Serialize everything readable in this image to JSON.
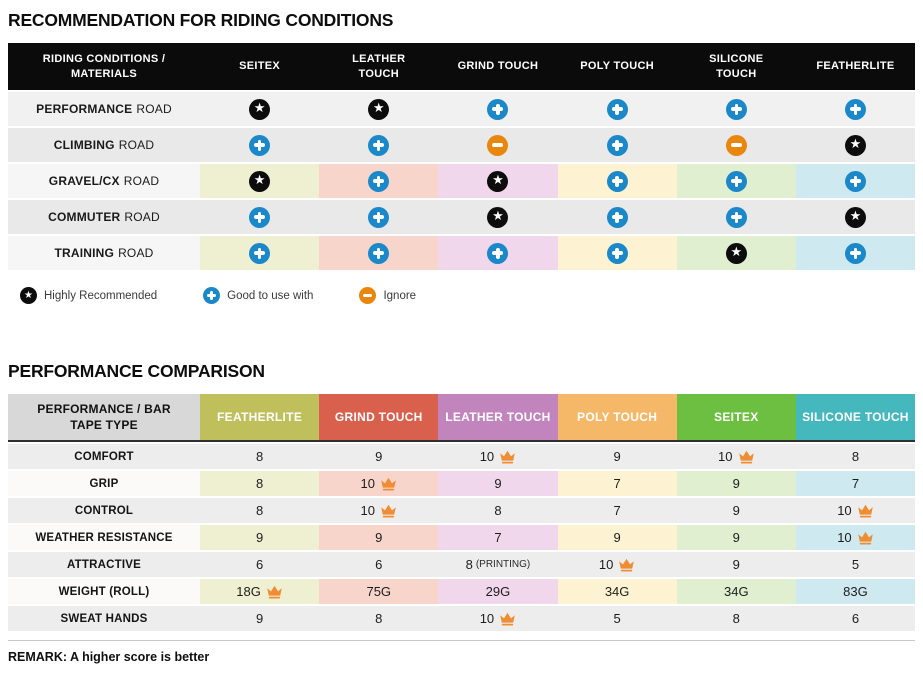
{
  "colors": {
    "header_black": "#0b0b0b",
    "icon_star_bg": "#0c0c0c",
    "icon_plus_bg": "#1a88c9",
    "icon_minus_bg": "#e8860e",
    "crown_orange": "#ee8d33",
    "row_light_gray": "#f1f1f1",
    "row_dark_gray": "#e9e9e9",
    "t1_colored_row_label_bg": "#f6f6f6",
    "t2_row_gray": "#ededed",
    "t2_colored_row_label_bg": "#fbfaf8",
    "t2_header_label_bg": "#d8d8d8",
    "column_cell_colors": [
      "#efefd2",
      "#f8d5ca",
      "#f1d7ec",
      "#fdf3d3",
      "#dfefd0",
      "#cfe9f0"
    ],
    "column_header_colors": [
      "#bfc05c",
      "#d9604d",
      "#c284bd",
      "#f5b868",
      "#6cbf40",
      "#45b8be"
    ]
  },
  "section1": {
    "title": "RECOMMENDATION FOR RIDING CONDITIONS",
    "table": {
      "header_label": "RIDING CONDITIONS / MATERIALS",
      "columns": [
        "SEITEX",
        "LEATHER TOUCH",
        "GRIND TOUCH",
        "POLY TOUCH",
        "SILICONE TOUCH",
        "FEATHERLITE"
      ],
      "rows": [
        {
          "label_bold": "PERFORMANCE",
          "label_rest": "ROAD",
          "colored": false,
          "cells": [
            "star",
            "star",
            "plus",
            "plus",
            "plus",
            "plus"
          ]
        },
        {
          "label_bold": "CLIMBING",
          "label_rest": "ROAD",
          "colored": false,
          "cells": [
            "plus",
            "plus",
            "minus",
            "plus",
            "minus",
            "star"
          ]
        },
        {
          "label_bold": "GRAVEL/CX",
          "label_rest": "ROAD",
          "colored": true,
          "cells": [
            "star",
            "plus",
            "star",
            "plus",
            "plus",
            "plus"
          ]
        },
        {
          "label_bold": "COMMUTER",
          "label_rest": "ROAD",
          "colored": false,
          "cells": [
            "plus",
            "plus",
            "star",
            "plus",
            "plus",
            "star"
          ]
        },
        {
          "label_bold": "TRAINING",
          "label_rest": "ROAD",
          "colored": true,
          "cells": [
            "plus",
            "plus",
            "plus",
            "plus",
            "star",
            "plus"
          ]
        }
      ]
    },
    "legend": [
      {
        "icon": "star",
        "label": "Highly Recommended"
      },
      {
        "icon": "plus",
        "label": "Good to use with"
      },
      {
        "icon": "minus",
        "label": "Ignore"
      }
    ]
  },
  "section2": {
    "title": "PERFORMANCE COMPARISON",
    "table": {
      "header_label": "PERFORMANCE / BAR TAPE TYPE",
      "columns": [
        "FEATHERLITE",
        "GRIND TOUCH",
        "LEATHER TOUCH",
        "POLY TOUCH",
        "SEITEX",
        "SILICONE TOUCH"
      ],
      "rows": [
        {
          "label": "COMFORT",
          "colored": false,
          "cells": [
            {
              "v": "8"
            },
            {
              "v": "9"
            },
            {
              "v": "10",
              "crown": true
            },
            {
              "v": "9"
            },
            {
              "v": "10",
              "crown": true
            },
            {
              "v": "8"
            }
          ]
        },
        {
          "label": "GRIP",
          "colored": true,
          "cells": [
            {
              "v": "8"
            },
            {
              "v": "10",
              "crown": true
            },
            {
              "v": "9"
            },
            {
              "v": "7"
            },
            {
              "v": "9"
            },
            {
              "v": "7"
            }
          ]
        },
        {
          "label": "CONTROL",
          "colored": false,
          "cells": [
            {
              "v": "8"
            },
            {
              "v": "10",
              "crown": true
            },
            {
              "v": "8"
            },
            {
              "v": "7"
            },
            {
              "v": "9"
            },
            {
              "v": "10",
              "crown": true
            }
          ]
        },
        {
          "label": "WEATHER RESISTANCE",
          "colored": true,
          "cells": [
            {
              "v": "9"
            },
            {
              "v": "9"
            },
            {
              "v": "7"
            },
            {
              "v": "9"
            },
            {
              "v": "9"
            },
            {
              "v": "10",
              "crown": true
            }
          ]
        },
        {
          "label": "ATTRACTIVE",
          "colored": false,
          "cells": [
            {
              "v": "6"
            },
            {
              "v": "6"
            },
            {
              "v": "8",
              "note": "(PRINTING)"
            },
            {
              "v": "10",
              "crown": true
            },
            {
              "v": "9"
            },
            {
              "v": "5"
            }
          ]
        },
        {
          "label": "WEIGHT (ROLL)",
          "colored": true,
          "cells": [
            {
              "v": "18G",
              "crown": true
            },
            {
              "v": "75G"
            },
            {
              "v": "29G"
            },
            {
              "v": "34G"
            },
            {
              "v": "34G"
            },
            {
              "v": "83G"
            }
          ]
        },
        {
          "label": "SWEAT HANDS",
          "colored": false,
          "cells": [
            {
              "v": "9"
            },
            {
              "v": "8"
            },
            {
              "v": "10",
              "crown": true
            },
            {
              "v": "5"
            },
            {
              "v": "8"
            },
            {
              "v": "6"
            }
          ]
        }
      ]
    },
    "remark": "REMARK: A higher score is better"
  }
}
